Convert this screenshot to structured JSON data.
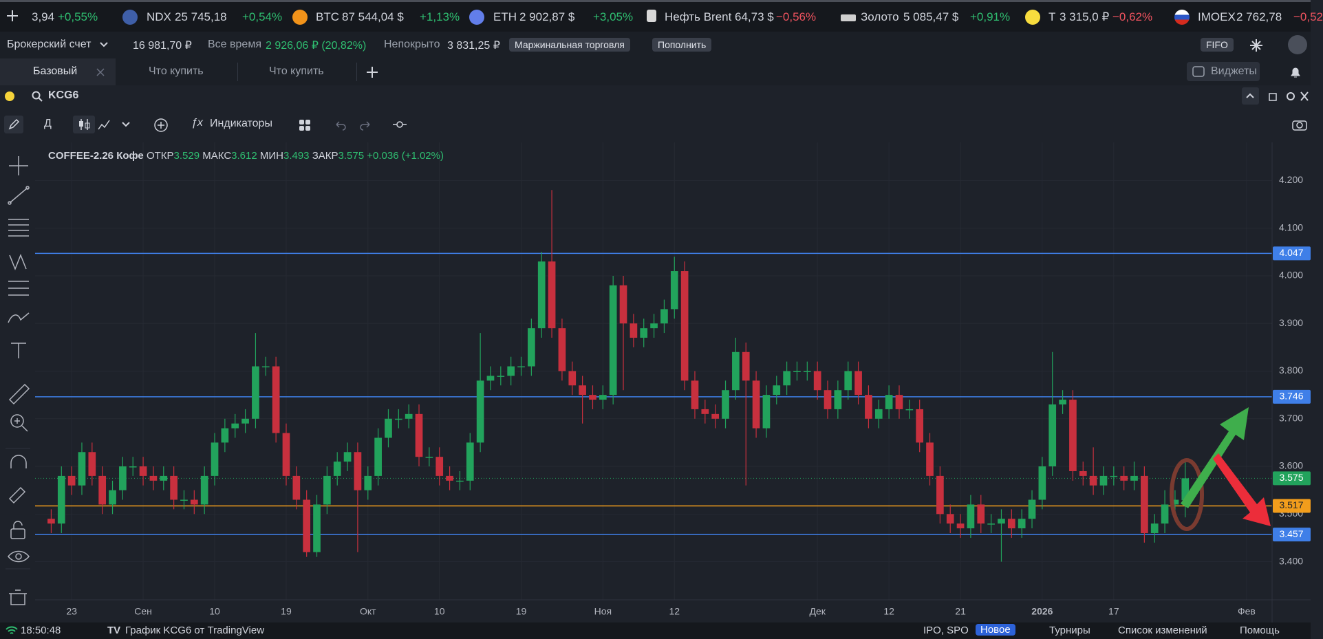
{
  "ticker": {
    "items": [
      {
        "price": "3,94",
        "change": "+0,55%",
        "color": "#2fbf71"
      },
      {
        "name": "NDX",
        "price": "25 745,18",
        "change": "+0,54%",
        "color": "#2fbf71"
      },
      {
        "name": "BTC",
        "price": "87 544,04 $",
        "change": "+1,13%",
        "color": "#2fbf71"
      },
      {
        "name": "ETH",
        "price": "2 902,87 $",
        "change": "+3,05%",
        "color": "#2fbf71"
      },
      {
        "name": "Нефть Brent",
        "price": "64,73 $",
        "change": "−0,56%",
        "color": "#f0535f"
      },
      {
        "name": "Золото",
        "price": "5 085,47 $",
        "change": "+0,91%",
        "color": "#2fbf71"
      },
      {
        "name": "Т",
        "price": "3 315,0 ₽",
        "change": "−0,62%",
        "color": "#f0535f"
      },
      {
        "name": "IMOEX",
        "price": "2 762,78",
        "change": "−0,52",
        "color": "#f0535f"
      }
    ]
  },
  "account": {
    "name": "Брокерский счет",
    "balance": "16 981,70 ₽",
    "period": "Все время",
    "profit": "2 926,06 ₽ (20,82%)",
    "uncovered_label": "Непокрыто",
    "uncovered": "3 831,25 ₽",
    "margin_button": "Маржинальная торговля",
    "deposit_button": "Пополнить",
    "fifo": "FIFO"
  },
  "tabs": {
    "items": [
      "Базовый",
      "Что купить",
      "Что купить"
    ],
    "widgets": "Виджеты"
  },
  "symbol": "KCG6",
  "toolbar": {
    "interval": "Д",
    "indicators": "Индикаторы"
  },
  "chart_data": {
    "type": "candlestick",
    "title": "COFFEE-2.26 Кофе",
    "labels": {
      "open": "ОТКР",
      "high": "МАКС",
      "low": "МИН",
      "close": "ЗАКР"
    },
    "change": "+0.036 (+1.02%)",
    "categories": [
      null,
      null,
      "23",
      null,
      null,
      null,
      null,
      null,
      null,
      "Сен",
      null,
      null,
      null,
      null,
      null,
      null,
      "10",
      null,
      null,
      null,
      null,
      null,
      null,
      "19",
      null,
      null,
      null,
      null,
      null,
      null,
      null,
      "Окт",
      null,
      null,
      null,
      null,
      null,
      null,
      "10",
      null,
      null,
      null,
      null,
      null,
      null,
      null,
      "19",
      null,
      null,
      null,
      null,
      null,
      null,
      null,
      "Ноя",
      null,
      null,
      null,
      null,
      null,
      null,
      "12",
      null,
      null,
      null,
      null,
      null,
      null,
      null,
      null,
      null,
      null,
      null,
      null,
      null,
      "Дек",
      null,
      null,
      null,
      null,
      null,
      null,
      "12",
      null,
      null,
      null,
      null,
      null,
      null,
      "21",
      null,
      null,
      null,
      null,
      null,
      null,
      null,
      "2026",
      null,
      null,
      null,
      null,
      null,
      null,
      "17",
      null,
      null,
      null,
      null,
      null,
      null,
      null,
      null,
      null,
      null,
      null,
      null,
      "Фев",
      null,
      null
    ],
    "open": [
      3.49,
      3.48,
      3.58,
      3.56,
      3.63,
      3.58,
      3.52,
      3.55,
      3.6,
      3.6,
      3.58,
      3.57,
      3.58,
      3.53,
      3.53,
      3.52,
      3.58,
      3.65,
      3.68,
      3.69,
      3.7,
      3.81,
      3.81,
      3.67,
      3.58,
      3.53,
      3.42,
      3.52,
      3.58,
      3.61,
      3.63,
      3.55,
      3.58,
      3.66,
      3.7,
      3.7,
      3.71,
      3.62,
      3.62,
      3.58,
      3.57,
      3.57,
      3.65,
      3.78,
      3.79,
      3.79,
      3.81,
      3.81,
      3.89,
      4.03,
      3.89,
      3.8,
      3.77,
      3.75,
      3.74,
      3.75,
      3.98,
      3.9,
      3.87,
      3.89,
      3.9,
      3.93,
      4.01,
      3.78,
      3.72,
      3.71,
      3.7,
      3.76,
      3.84,
      3.78,
      3.68,
      3.75,
      3.77,
      3.8,
      3.8,
      3.8,
      3.76,
      3.72,
      3.76,
      3.8,
      3.75,
      3.7,
      3.72,
      3.75,
      3.72,
      3.72,
      3.65,
      3.58,
      3.5,
      3.48,
      3.47,
      3.52,
      3.48,
      3.48,
      3.49,
      3.47,
      3.49,
      3.53,
      3.6,
      3.73,
      3.74,
      3.59,
      3.58,
      3.56,
      3.58,
      3.58,
      3.57,
      3.58,
      3.46,
      3.48,
      3.52,
      3.529,
      null,
      null,
      null,
      null,
      null,
      null,
      null,
      null
    ],
    "high": [
      3.51,
      3.6,
      3.6,
      3.65,
      3.65,
      3.6,
      3.57,
      3.62,
      3.62,
      3.62,
      3.6,
      3.6,
      3.6,
      3.55,
      3.55,
      3.6,
      3.67,
      3.7,
      3.71,
      3.72,
      3.88,
      3.83,
      3.83,
      3.69,
      3.6,
      3.55,
      3.54,
      3.6,
      3.63,
      3.65,
      3.65,
      3.6,
      3.68,
      3.72,
      3.72,
      3.73,
      3.73,
      3.64,
      3.64,
      3.6,
      3.59,
      3.67,
      3.88,
      3.81,
      3.81,
      3.83,
      3.83,
      3.91,
      4.05,
      4.18,
      3.91,
      3.82,
      3.79,
      3.77,
      3.77,
      4.0,
      4.0,
      3.92,
      3.91,
      3.92,
      3.95,
      4.04,
      4.03,
      3.8,
      3.74,
      3.73,
      3.78,
      3.87,
      3.86,
      3.8,
      3.77,
      3.79,
      3.82,
      3.82,
      3.82,
      3.82,
      3.78,
      3.78,
      3.82,
      3.82,
      3.77,
      3.74,
      3.77,
      3.77,
      3.74,
      3.74,
      3.67,
      3.6,
      3.52,
      3.5,
      3.54,
      3.54,
      3.5,
      3.51,
      3.51,
      3.51,
      3.55,
      3.62,
      3.84,
      3.76,
      3.76,
      3.61,
      3.64,
      3.6,
      3.6,
      3.6,
      3.61,
      3.6,
      3.5,
      3.55,
      3.55,
      3.612,
      null,
      null,
      null,
      null,
      null,
      null,
      null,
      null
    ],
    "low": [
      3.46,
      3.46,
      3.54,
      3.54,
      3.56,
      3.5,
      3.5,
      3.53,
      3.58,
      3.56,
      3.55,
      3.55,
      3.51,
      3.51,
      3.5,
      3.5,
      3.56,
      3.63,
      3.66,
      3.67,
      3.68,
      3.79,
      3.65,
      3.56,
      3.51,
      3.41,
      3.41,
      3.5,
      3.56,
      3.59,
      3.42,
      3.53,
      3.56,
      3.64,
      3.68,
      3.68,
      3.6,
      3.6,
      3.56,
      3.55,
      3.55,
      3.55,
      3.63,
      3.76,
      3.77,
      3.77,
      3.79,
      3.79,
      3.87,
      3.87,
      3.78,
      3.75,
      3.69,
      3.72,
      3.72,
      3.73,
      3.76,
      3.85,
      3.85,
      3.87,
      3.88,
      3.91,
      3.76,
      3.7,
      3.69,
      3.68,
      3.68,
      3.74,
      3.56,
      3.66,
      3.66,
      3.73,
      3.75,
      3.78,
      3.78,
      3.74,
      3.7,
      3.7,
      3.74,
      3.73,
      3.68,
      3.68,
      3.7,
      3.7,
      3.7,
      3.63,
      3.56,
      3.48,
      3.46,
      3.45,
      3.45,
      3.46,
      3.46,
      3.4,
      3.45,
      3.45,
      3.47,
      3.51,
      3.58,
      3.71,
      3.57,
      3.56,
      3.54,
      3.54,
      3.56,
      3.55,
      3.55,
      3.44,
      3.44,
      3.46,
      3.5,
      3.493,
      null,
      null,
      null,
      null,
      null,
      null,
      null,
      null
    ],
    "close": [
      3.48,
      3.58,
      3.56,
      3.63,
      3.58,
      3.52,
      3.55,
      3.6,
      3.6,
      3.58,
      3.57,
      3.58,
      3.53,
      3.53,
      3.52,
      3.58,
      3.65,
      3.68,
      3.69,
      3.7,
      3.81,
      3.81,
      3.67,
      3.58,
      3.53,
      3.42,
      3.52,
      3.58,
      3.61,
      3.63,
      3.55,
      3.58,
      3.66,
      3.7,
      3.7,
      3.71,
      3.62,
      3.62,
      3.58,
      3.57,
      3.57,
      3.65,
      3.78,
      3.79,
      3.79,
      3.81,
      3.81,
      3.89,
      4.03,
      3.89,
      3.8,
      3.77,
      3.75,
      3.74,
      3.75,
      3.98,
      3.9,
      3.87,
      3.89,
      3.9,
      3.93,
      4.01,
      3.78,
      3.72,
      3.71,
      3.7,
      3.76,
      3.84,
      3.78,
      3.68,
      3.75,
      3.77,
      3.8,
      3.8,
      3.8,
      3.76,
      3.72,
      3.76,
      3.8,
      3.75,
      3.7,
      3.72,
      3.75,
      3.72,
      3.72,
      3.65,
      3.58,
      3.5,
      3.48,
      3.47,
      3.52,
      3.48,
      3.48,
      3.49,
      3.47,
      3.49,
      3.53,
      3.6,
      3.73,
      3.74,
      3.59,
      3.58,
      3.56,
      3.58,
      3.58,
      3.57,
      3.58,
      3.46,
      3.48,
      3.52,
      3.53,
      3.575,
      null,
      null,
      null,
      null,
      null,
      null,
      null,
      null
    ],
    "up_color": "#22a35c",
    "down_color": "#c8303e",
    "ylim": [
      3.32,
      4.28
    ],
    "yticks": [
      {
        "value": 3.4,
        "label": "3.400"
      },
      {
        "value": 3.5,
        "label": "3.500"
      },
      {
        "value": 3.6,
        "label": "3.600"
      },
      {
        "value": 3.7,
        "label": "3.700"
      },
      {
        "value": 3.8,
        "label": "3.800"
      },
      {
        "value": 3.9,
        "label": "3.900"
      },
      {
        "value": 4.0,
        "label": "4.000"
      },
      {
        "value": 4.1,
        "label": "4.100"
      },
      {
        "value": 4.2,
        "label": "4.200"
      }
    ],
    "grid": true,
    "levels": [
      {
        "value": 4.047,
        "color": "#3f7fe8"
      },
      {
        "value": 3.746,
        "color": "#3f7fe8"
      },
      {
        "value": 3.517,
        "color": "#f29d1c"
      },
      {
        "value": 3.457,
        "color": "#3f7fe8"
      }
    ],
    "last_price_color": "#22a35c"
  },
  "status": {
    "time": "18:50:48",
    "source": "График KCG6 от TradingView",
    "items": [
      "IPO, SPO",
      "Новое",
      "Турниры",
      "Список изменений",
      "Помощь"
    ]
  }
}
